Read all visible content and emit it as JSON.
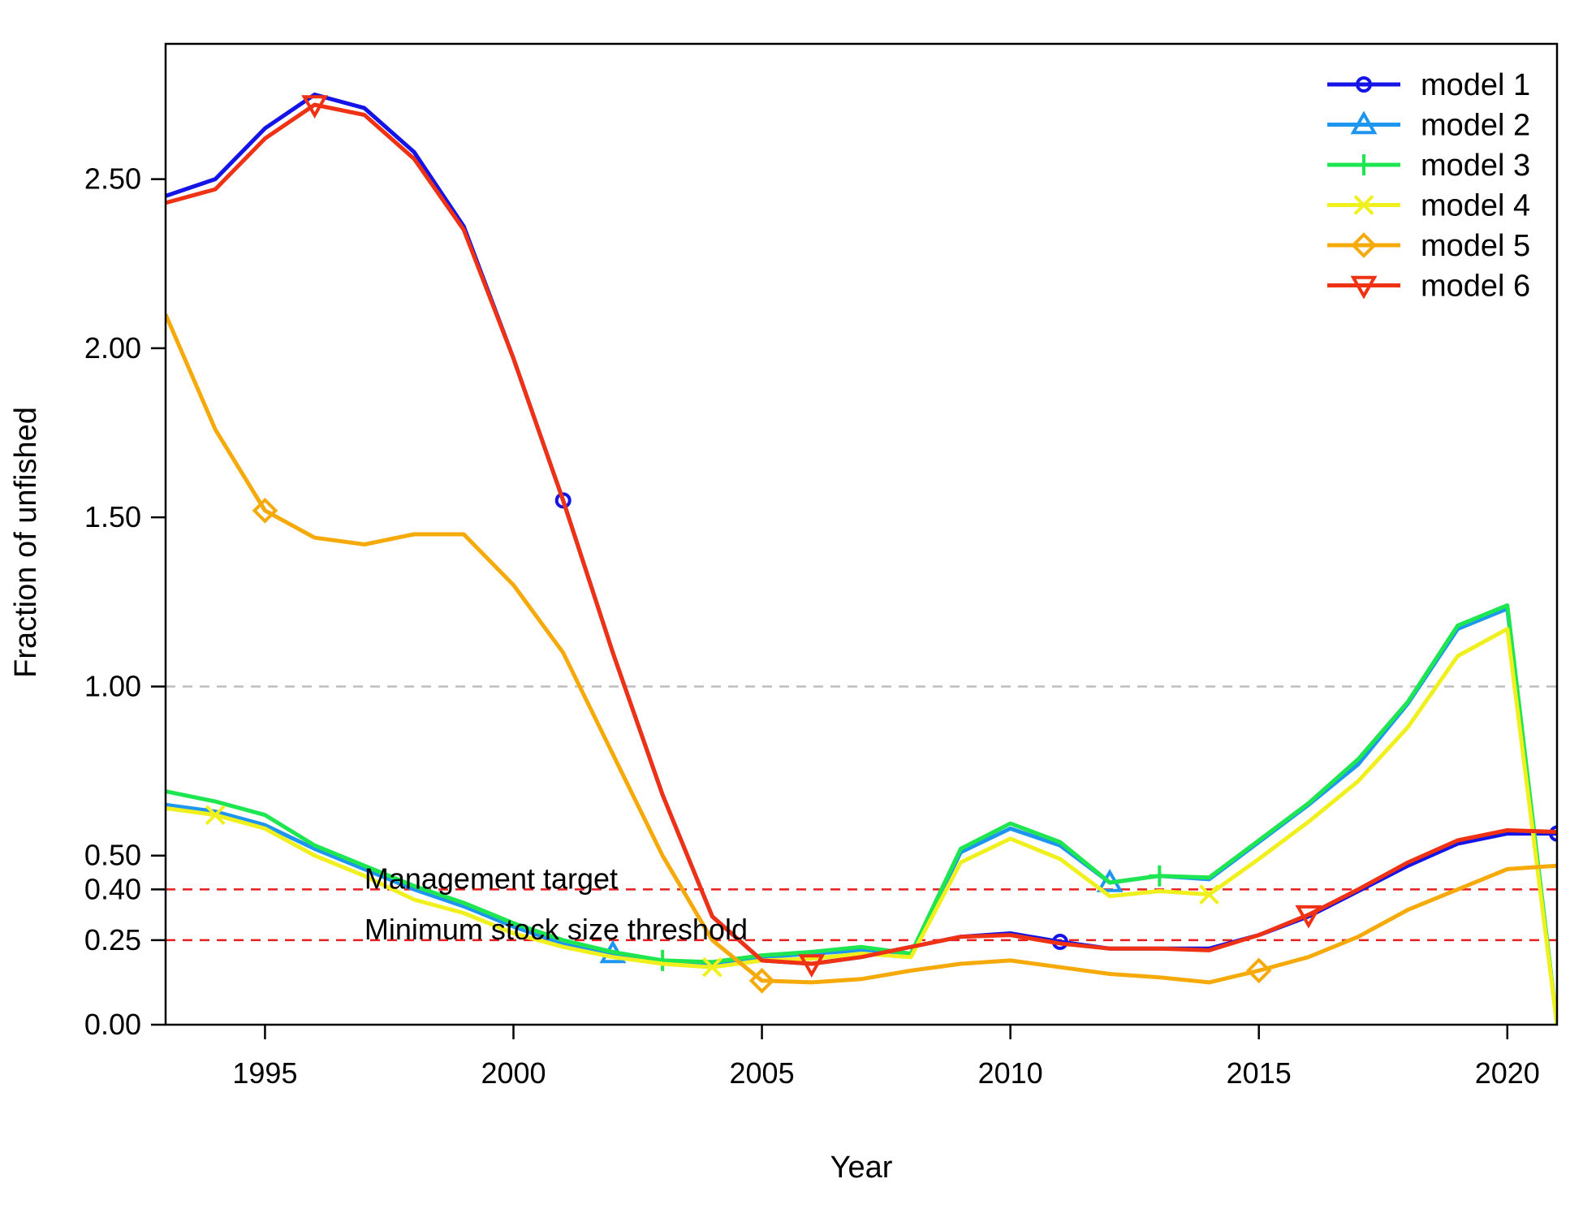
{
  "chart_data": {
    "type": "line",
    "xlabel": "Year",
    "ylabel": "Fraction of unfished",
    "xlim": [
      1993,
      2021
    ],
    "ylim": [
      0,
      2.9
    ],
    "x_ticks": [
      1995,
      2000,
      2005,
      2010,
      2015,
      2020
    ],
    "x_tick_labels": [
      "1995",
      "2000",
      "2005",
      "2010",
      "2015",
      "2020"
    ],
    "y_ticks": [
      0.0,
      0.25,
      0.4,
      0.5,
      1.0,
      1.5,
      2.0,
      2.5
    ],
    "y_tick_labels": [
      "0.00",
      "0.25",
      "0.40",
      "0.50",
      "1.00",
      "1.50",
      "2.00",
      "2.50"
    ],
    "legend_position": "top-right",
    "x": [
      1993,
      1994,
      1995,
      1996,
      1997,
      1998,
      1999,
      2000,
      2001,
      2002,
      2003,
      2004,
      2005,
      2006,
      2007,
      2008,
      2009,
      2010,
      2011,
      2012,
      2013,
      2014,
      2015,
      2016,
      2017,
      2018,
      2019,
      2020,
      2021
    ],
    "series": [
      {
        "name": "model 1",
        "color": "#1414e6",
        "marker": "circle",
        "marker_x": [
          2001,
          2011,
          2021
        ],
        "values": [
          2.45,
          2.5,
          2.65,
          2.75,
          2.71,
          2.58,
          2.36,
          1.97,
          1.55,
          1.1,
          0.68,
          0.32,
          0.19,
          0.18,
          0.2,
          0.23,
          0.26,
          0.27,
          0.245,
          0.225,
          0.225,
          0.225,
          0.265,
          0.32,
          0.395,
          0.47,
          0.535,
          0.565,
          0.565
        ]
      },
      {
        "name": "model 2",
        "color": "#1e96f0",
        "marker": "triangle-up",
        "marker_x": [
          2002,
          2012
        ],
        "values": [
          0.65,
          0.63,
          0.59,
          0.52,
          0.46,
          0.4,
          0.35,
          0.29,
          0.24,
          0.21,
          0.19,
          0.18,
          0.2,
          0.21,
          0.22,
          0.21,
          0.51,
          0.58,
          0.53,
          0.42,
          0.44,
          0.43,
          0.54,
          0.65,
          0.77,
          0.95,
          1.17,
          1.23,
          0.0
        ]
      },
      {
        "name": "model 3",
        "color": "#1ee650",
        "marker": "plus",
        "marker_x": [
          2003,
          2013
        ],
        "values": [
          0.69,
          0.66,
          0.62,
          0.53,
          0.47,
          0.41,
          0.36,
          0.3,
          0.25,
          0.215,
          0.19,
          0.185,
          0.205,
          0.215,
          0.23,
          0.21,
          0.52,
          0.595,
          0.54,
          0.42,
          0.44,
          0.435,
          0.545,
          0.655,
          0.785,
          0.955,
          1.18,
          1.24,
          0.0
        ]
      },
      {
        "name": "model 4",
        "color": "#f0f01e",
        "marker": "cross",
        "marker_x": [
          1994,
          2004,
          2014
        ],
        "values": [
          0.64,
          0.62,
          0.58,
          0.5,
          0.44,
          0.37,
          0.33,
          0.27,
          0.23,
          0.2,
          0.18,
          0.17,
          0.19,
          0.195,
          0.21,
          0.2,
          0.48,
          0.55,
          0.49,
          0.38,
          0.395,
          0.385,
          0.49,
          0.6,
          0.72,
          0.88,
          1.09,
          1.17,
          0.0
        ]
      },
      {
        "name": "model 5",
        "color": "#f5aa0a",
        "marker": "diamond",
        "marker_x": [
          1995,
          2005,
          2015
        ],
        "values": [
          2.1,
          1.76,
          1.52,
          1.44,
          1.42,
          1.45,
          1.45,
          1.3,
          1.1,
          0.8,
          0.5,
          0.25,
          0.13,
          0.125,
          0.135,
          0.16,
          0.18,
          0.19,
          0.17,
          0.15,
          0.14,
          0.125,
          0.16,
          0.2,
          0.26,
          0.34,
          0.4,
          0.46,
          0.47
        ]
      },
      {
        "name": "model 6",
        "color": "#f03214",
        "marker": "triangle-down",
        "marker_x": [
          1996,
          2006,
          2016
        ],
        "values": [
          2.43,
          2.47,
          2.62,
          2.72,
          2.69,
          2.56,
          2.35,
          1.97,
          1.55,
          1.1,
          0.68,
          0.32,
          0.19,
          0.18,
          0.2,
          0.23,
          0.26,
          0.265,
          0.24,
          0.225,
          0.225,
          0.22,
          0.265,
          0.325,
          0.4,
          0.48,
          0.545,
          0.575,
          0.57
        ]
      }
    ],
    "reference_lines": [
      {
        "y": 1.0,
        "color": "#bebebe",
        "style": "dashed",
        "label": ""
      },
      {
        "y": 0.4,
        "color": "#e61e1e",
        "style": "dashed",
        "label": "Management target"
      },
      {
        "y": 0.25,
        "color": "#e61e1e",
        "style": "dashed",
        "label": "Minimum stock size threshold"
      }
    ],
    "annotation_x": 1997
  }
}
